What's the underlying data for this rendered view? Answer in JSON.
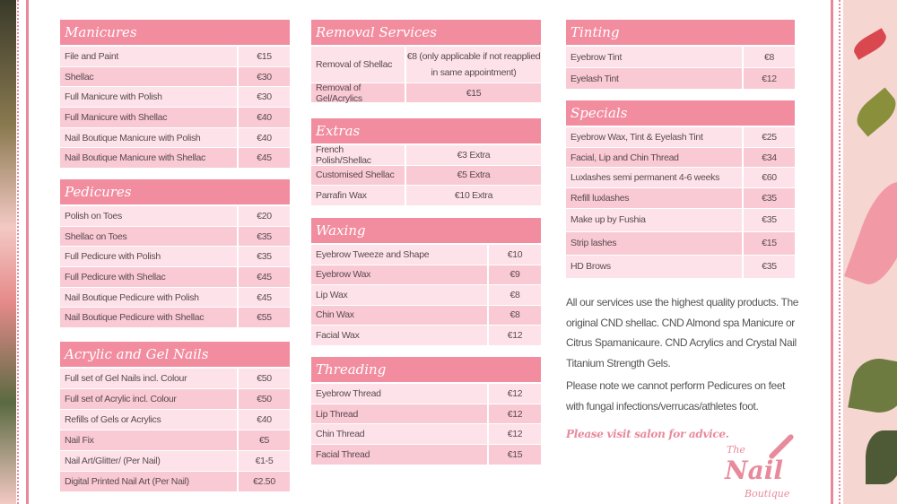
{
  "colors": {
    "header": "#f28da0",
    "row_light": "#fde3e9",
    "row_dark": "#f9c9d4",
    "accent": "#e88a9c"
  },
  "sections": [
    {
      "id": "manicures",
      "title": "Manicures",
      "items": [
        {
          "name": "File and Paint",
          "price": "€15"
        },
        {
          "name": "Shellac",
          "price": "€30"
        },
        {
          "name": "Full Manicure with Polish",
          "price": "€30"
        },
        {
          "name": "Full Manicure with Shellac",
          "price": "€40"
        },
        {
          "name": "Nail Boutique Manicure with Polish",
          "price": "€40"
        },
        {
          "name": "Nail Boutique Manicure with Shellac",
          "price": "€45"
        }
      ]
    },
    {
      "id": "pedicures",
      "title": "Pedicures",
      "items": [
        {
          "name": "Polish on Toes",
          "price": "€20"
        },
        {
          "name": "Shellac on Toes",
          "price": "€35"
        },
        {
          "name": "Full Pedicure with Polish",
          "price": "€35"
        },
        {
          "name": "Full Pedicure  with Shellac",
          "price": "€45"
        },
        {
          "name": "Nail Boutique Pedicure with Polish",
          "price": "€45"
        },
        {
          "name": "Nail Boutique Pedicure with Shellac",
          "price": "€55"
        }
      ]
    },
    {
      "id": "acrylic",
      "title": "Acrylic and Gel Nails",
      "items": [
        {
          "name": "Full set of Gel Nails incl. Colour",
          "price": "€50"
        },
        {
          "name": "Full set of Acrylic incl. Colour",
          "price": "€50"
        },
        {
          "name": "Refills of Gels or Acrylics",
          "price": "€40"
        },
        {
          "name": "Nail Fix",
          "price": "€5"
        },
        {
          "name": "Nail Art/Glitter/ (Per Nail)",
          "price": "€1-5"
        },
        {
          "name": "Digital Printed Nail Art (Per Nail)",
          "price": "€2.50"
        }
      ]
    },
    {
      "id": "removal",
      "title": "Removal Services",
      "items": [
        {
          "name": "Removal of Shellac",
          "price": "€8 (only applicable if not reapplied in same appointment)"
        },
        {
          "name": "Removal of Gel/Acrylics",
          "price": "€15"
        }
      ]
    },
    {
      "id": "extras",
      "title": "Extras",
      "items": [
        {
          "name": "French Polish/Shellac",
          "price": "€3 Extra"
        },
        {
          "name": "Customised Shellac",
          "price": "€5 Extra"
        },
        {
          "name": "Parrafin Wax",
          "price": "€10 Extra"
        }
      ]
    },
    {
      "id": "waxing",
      "title": "Waxing",
      "items": [
        {
          "name": "Eyebrow Tweeze and Shape",
          "price": "€10"
        },
        {
          "name": "Eyebrow Wax",
          "price": "€9"
        },
        {
          "name": "Lip Wax",
          "price": "€8"
        },
        {
          "name": "Chin Wax",
          "price": "€8"
        },
        {
          "name": "Facial Wax",
          "price": "€12"
        }
      ]
    },
    {
      "id": "threading",
      "title": "Threading",
      "items": [
        {
          "name": "Eyebrow Thread",
          "price": "€12"
        },
        {
          "name": "Lip Thread",
          "price": "€12"
        },
        {
          "name": "Chin Thread",
          "price": "€12"
        },
        {
          "name": "Facial Thread",
          "price": "€15"
        }
      ]
    },
    {
      "id": "tinting",
      "title": "Tinting",
      "items": [
        {
          "name": "Eyebrow Tint",
          "price": "€8"
        },
        {
          "name": "Eyelash Tint",
          "price": "€12"
        }
      ]
    },
    {
      "id": "specials",
      "title": "Specials",
      "items": [
        {
          "name": "Eyebrow Wax, Tint & Eyelash Tint",
          "price": "€25"
        },
        {
          "name": "Facial, Lip and Chin Thread",
          "price": "€34"
        },
        {
          "name": "Luxlashes semi permanent 4-6 weeks",
          "price": "€60"
        },
        {
          "name": "Refill luxlashes",
          "price": "€35"
        },
        {
          "name": "Make up by Fushia",
          "price": "€35"
        },
        {
          "name": "Strip lashes",
          "price": "€15"
        },
        {
          "name": "HD Brows",
          "price": "€35"
        }
      ]
    }
  ],
  "notes": {
    "quality": "All our services use the highest quality products. The original CND shellac. CND Almond spa Manicure or Citrus Spamanicaure. CND Acrylics and Crystal Nail Titanium Strength Gels.",
    "pedicure_warning": "Please note we cannot perform Pedicures on feet with fungal infections/verrucas/athletes foot.",
    "advice": "Please visit salon for advice."
  },
  "logo": {
    "the": "The",
    "nail": "Nail",
    "boutique": "Boutique"
  }
}
